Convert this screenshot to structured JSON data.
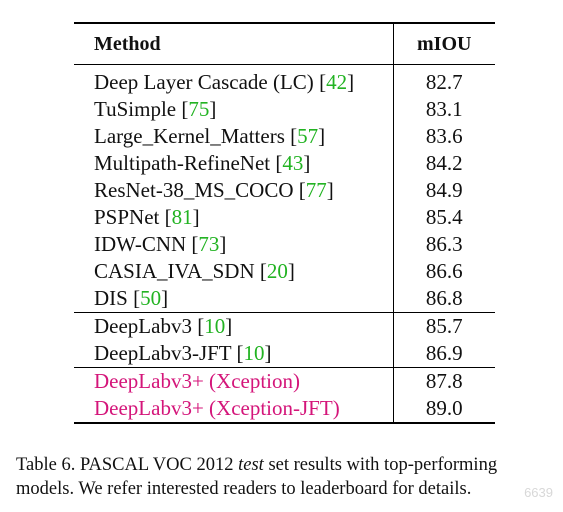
{
  "table": {
    "header": {
      "method": "Method",
      "miou": "mIOU"
    },
    "groups": [
      [
        {
          "name": "Deep Layer Cascade (LC) ",
          "ref": "42",
          "miou": "82.7"
        },
        {
          "name": "TuSimple ",
          "ref": "75",
          "miou": "83.1"
        },
        {
          "name": "Large_Kernel_Matters ",
          "ref": "57",
          "miou": "83.6"
        },
        {
          "name": "Multipath-RefineNet ",
          "ref": "43",
          "miou": "84.2"
        },
        {
          "name": "ResNet-38_MS_COCO ",
          "ref": "77",
          "miou": "84.9"
        },
        {
          "name": "PSPNet ",
          "ref": "81",
          "miou": "85.4"
        },
        {
          "name": "IDW-CNN ",
          "ref": "73",
          "miou": "86.3"
        },
        {
          "name": "CASIA_IVA_SDN ",
          "ref": "20",
          "miou": "86.6"
        },
        {
          "name": "DIS ",
          "ref": "50",
          "miou": "86.8"
        }
      ],
      [
        {
          "name": "DeepLabv3 ",
          "ref": "10",
          "miou": "85.7"
        },
        {
          "name": "DeepLabv3-JFT ",
          "ref": "10",
          "miou": "86.9"
        }
      ],
      [
        {
          "name": "DeepLabv3+ (Xception)",
          "miou": "87.8"
        },
        {
          "name": "DeepLabv3+ (Xception-JFT)",
          "miou": "89.0"
        }
      ]
    ]
  },
  "caption": {
    "prefix": "Table 6. PASCAL VOC 2012 ",
    "emphasis": "test",
    "suffix": " set results with top-performing models. We refer interested readers to leaderboard for details."
  },
  "watermark": "6639",
  "colors": {
    "reference_link": "#22b322",
    "proposed_method": "#d4157a",
    "text": "#111111"
  }
}
